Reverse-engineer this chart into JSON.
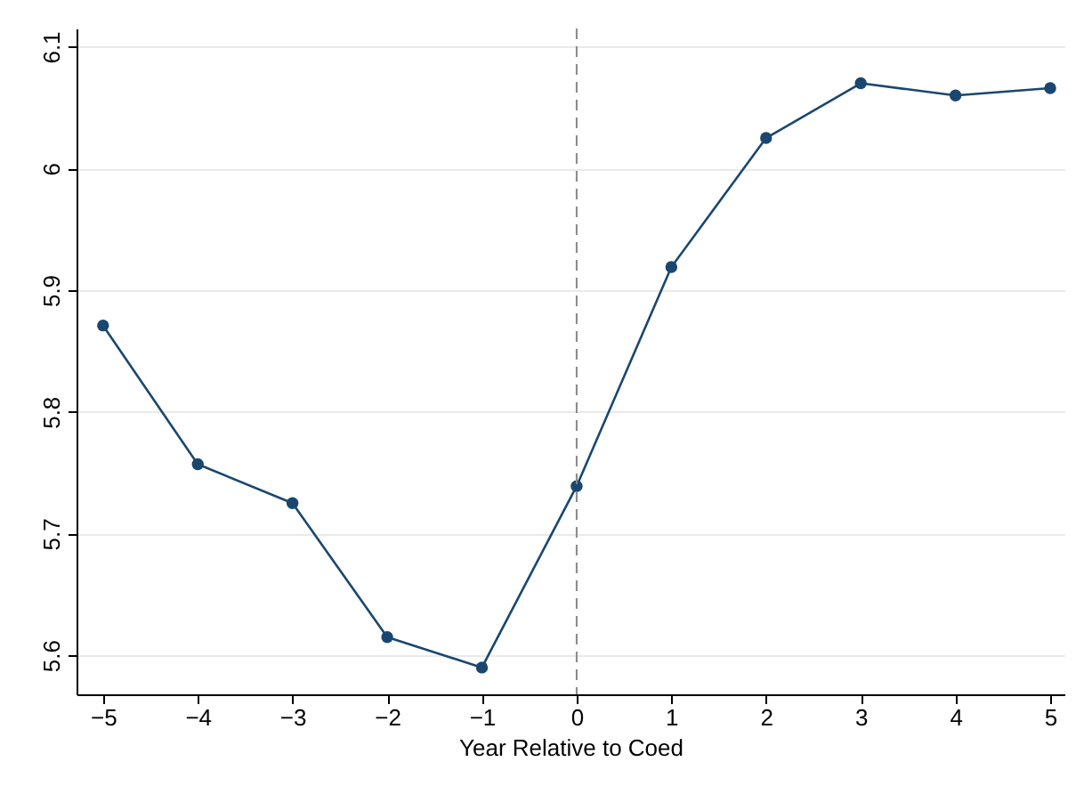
{
  "chart_data": {
    "type": "line",
    "xlabel": "Year Relative to Coed",
    "x": [
      -5,
      -4,
      -3,
      -2,
      -1,
      0,
      1,
      2,
      3,
      4,
      5
    ],
    "series": [
      {
        "color": "#1a476f",
        "values": [
          5.871,
          5.757,
          5.725,
          5.615,
          5.59,
          5.739,
          5.919,
          6.025,
          6.07,
          6.06,
          6.066
        ]
      }
    ],
    "xlim": [
      -5.28,
      5.15
    ],
    "xticks": [
      -5,
      -4,
      -3,
      -2,
      -1,
      0,
      1,
      2,
      3,
      4,
      5
    ],
    "ylim": [
      5.568,
      6.115
    ],
    "yticks": [
      5.6,
      5.7,
      5.8,
      5.9,
      6,
      6.1
    ],
    "grid": "y",
    "marker": "circle",
    "line_style": "solid",
    "ref_lines": [
      {
        "axis": "x",
        "value": 0,
        "color": "#888888",
        "line_style": "dashed"
      }
    ]
  }
}
